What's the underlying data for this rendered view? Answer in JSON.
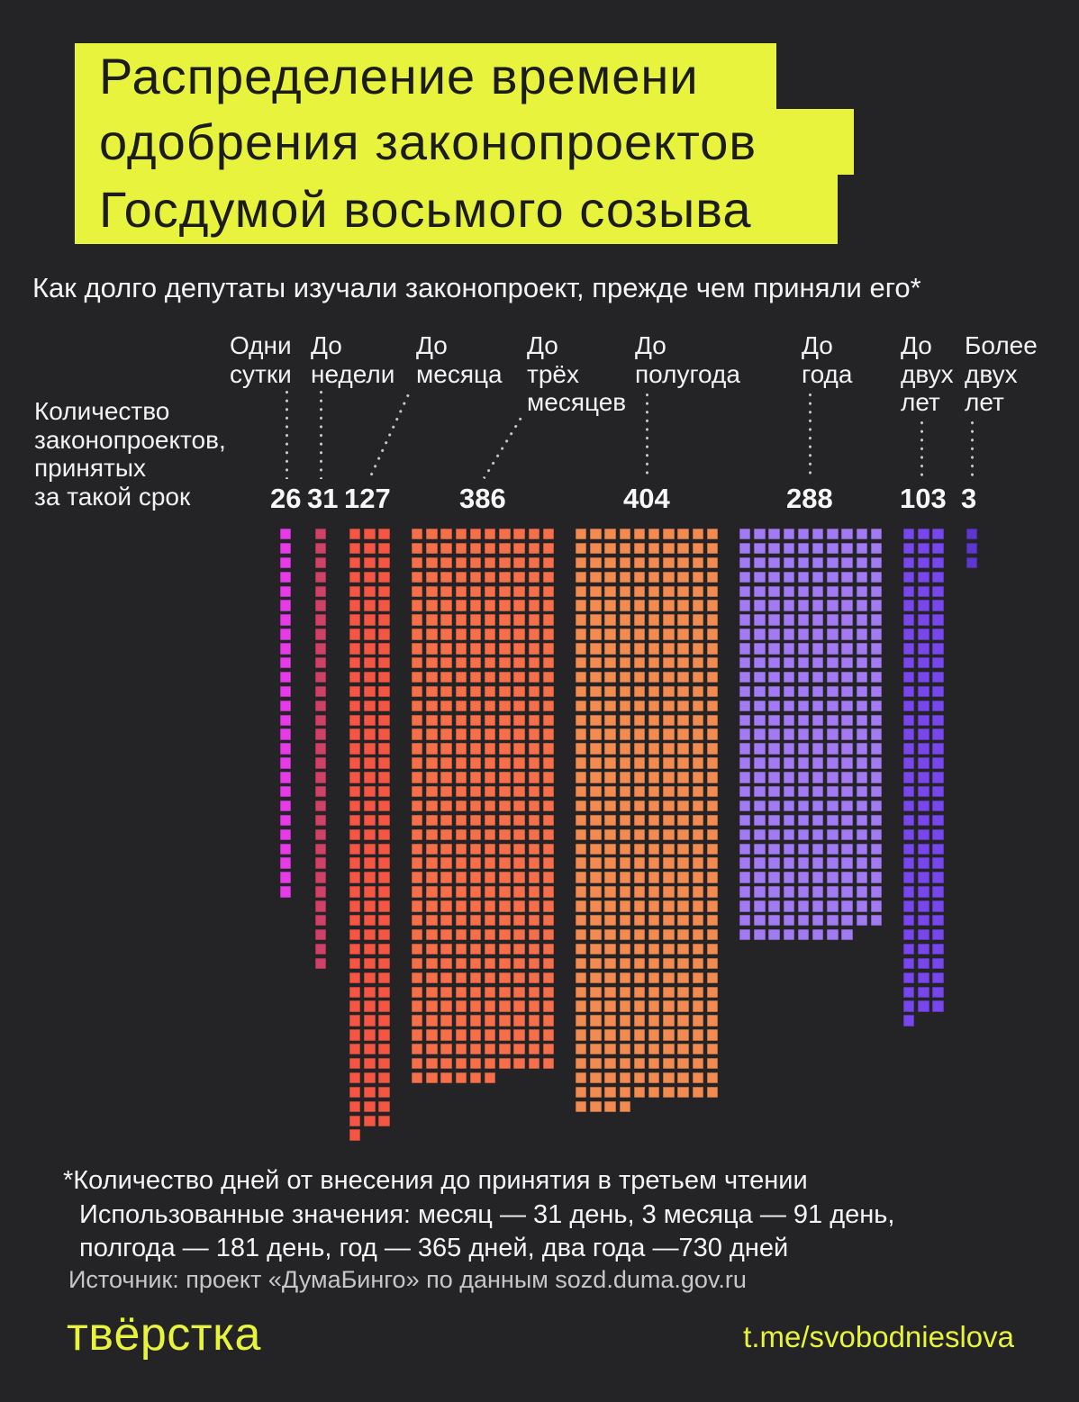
{
  "title": {
    "lines": [
      "Распределение времени",
      "одобрения законопроектов",
      "Госдумой восьмого созыва"
    ]
  },
  "subtitle": "Как долго депутаты изучали законопроект, прежде чем приняли его*",
  "axis_label_lines": [
    "Количество",
    "законопроектов,",
    "принятых",
    "за такой срок"
  ],
  "chart_data": {
    "type": "waffle-bar",
    "note": "1 square = 1 bill; columns flow top-to-bottom, remainder squares left-aligned in last row",
    "categories": [
      "Одни сутки",
      "До недели",
      "До месяца",
      "До трёх месяцев",
      "До полугода",
      "До года",
      "До двух лет",
      "Более двух лет"
    ],
    "category_label_lines": [
      [
        "Одни",
        "сутки"
      ],
      [
        "До",
        "недели"
      ],
      [
        "До",
        "месяца"
      ],
      [
        "До",
        "трёх",
        "месяцев"
      ],
      [
        "До",
        "полугода"
      ],
      [
        "До",
        "года"
      ],
      [
        "До",
        "двух",
        "лет"
      ],
      [
        "Более",
        "двух",
        "лет"
      ]
    ],
    "values": [
      26,
      31,
      127,
      386,
      404,
      288,
      103,
      3
    ],
    "block_columns": [
      1,
      1,
      3,
      10,
      10,
      10,
      3,
      1
    ],
    "colors": [
      "#e53ce8",
      "#cd4266",
      "#f35743",
      "#f66f4b",
      "#f28b52",
      "#a27af2",
      "#7847ec",
      "#5d36cf"
    ],
    "legend_position": "none",
    "grid": false
  },
  "footnote": {
    "line1": "*Количество дней от внесения до принятия в третьем чтении",
    "line2": "Использованные значения: месяц — 31 день, 3 месяца — 91 день,",
    "line3": "полгода — 181 день, год — 365 дней, два года —730 дней"
  },
  "source": "Источник: проект «ДумаБинго» по данным sozd.duma.gov.ru",
  "footer": {
    "logo": "твёрстка",
    "channel": "t.me/svobodnieslova"
  },
  "colors": {
    "background": "#242426",
    "accent_yellow": "#e7f33c",
    "title_text": "#1c1c1c",
    "text_primary": "#f2f2f2",
    "text_muted": "#c7c7c7",
    "leader_dots": "#c9c9c9"
  }
}
